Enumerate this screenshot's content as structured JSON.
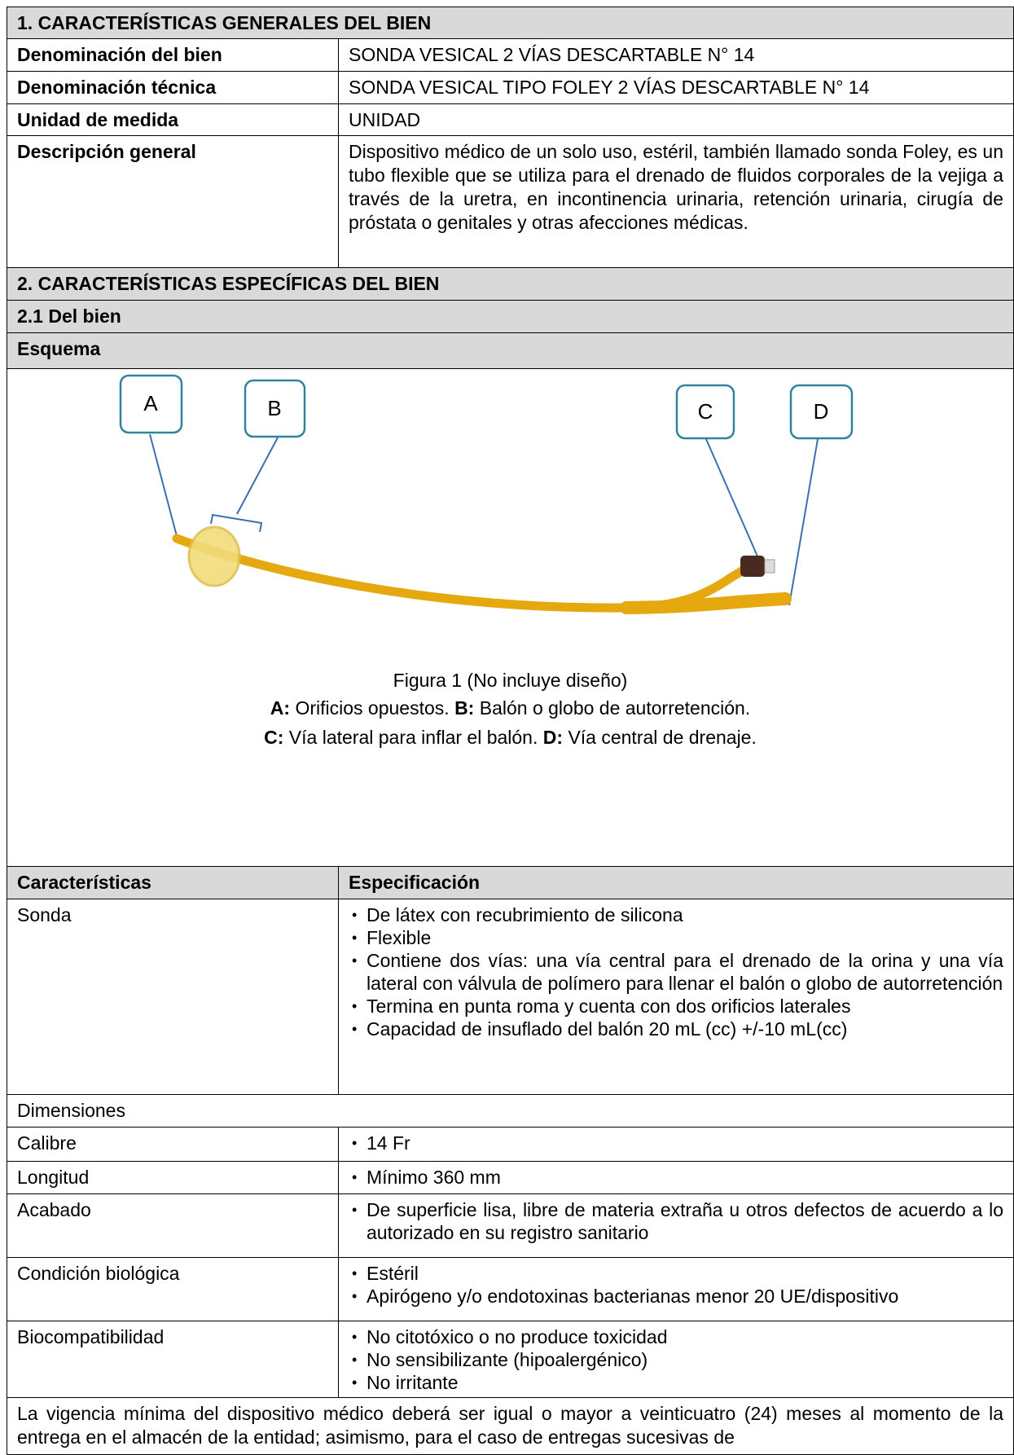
{
  "section1": {
    "title": "1. CARACTERÍSTICAS GENERALES DEL BIEN",
    "rows": [
      [
        "Denominación del bien",
        "SONDA VESICAL 2 VÍAS DESCARTABLE N° 14"
      ],
      [
        "Denominación técnica",
        "SONDA VESICAL TIPO FOLEY 2 VÍAS DESCARTABLE N° 14"
      ],
      [
        "Unidad de medida",
        "UNIDAD"
      ],
      [
        "Descripción general",
        "Dispositivo médico de un solo uso, estéril, también llamado sonda Foley, es un tubo flexible que se utiliza para el drenado de fluidos corporales de la vejiga a través de la uretra, en incontinencia urinaria, retención urinaria, cirugía de próstata o genitales y otras afecciones médicas."
      ]
    ]
  },
  "section2": {
    "title": "2. CARACTERÍSTICAS ESPECÍFICAS DEL BIEN",
    "subtitle": "2.1 Del bien",
    "scheme_title": "Esquema",
    "figure": {
      "labels": [
        "A",
        "B",
        "C",
        "D"
      ],
      "caption": "Figura 1 (No incluye diseño)",
      "legend": [
        [
          {
            "key": "A:",
            "text": "Orificios opuestos."
          },
          {
            "key": "B:",
            "text": "Balón o globo de autorretención."
          }
        ],
        [
          {
            "key": "C:",
            "text": "Vía lateral para inflar el balón."
          },
          {
            "key": "D:",
            "text": "Vía central de drenaje."
          }
        ]
      ]
    },
    "spec_table": {
      "header": [
        "Características",
        "Especificación"
      ],
      "rows": [
        {
          "name": "Sonda",
          "items": [
            "De látex con recubrimiento de silicona",
            "Flexible",
            "Contiene dos vías: una vía central para el drenado de la orina y una vía lateral con válvula de polímero para llenar el balón o globo de autorretención",
            "Termina en punta roma y cuenta con dos orificios laterales",
            "Capacidad de insuflado del balón 20 mL (cc) +/-10 mL(cc)"
          ]
        },
        {
          "name": "Dimensiones"
        },
        {
          "name": "Calibre",
          "items": [
            "14 Fr"
          ]
        },
        {
          "name": "Longitud",
          "items": [
            "Mínimo 360 mm"
          ]
        },
        {
          "name": "Acabado",
          "items": [
            "De superficie lisa, libre de materia extraña u otros defectos de acuerdo a lo autorizado en su registro sanitario"
          ]
        },
        {
          "name": "Condición biológica",
          "items": [
            "Estéril",
            "Apirógeno y/o endotoxinas bacterianas menor 20 UE/dispositivo"
          ]
        },
        {
          "name": "Biocompatibilidad",
          "items": [
            "No citotóxico o no produce toxicidad",
            "No sensibilizante (hipoalergénico)",
            "No irritante"
          ]
        }
      ]
    },
    "note": "La vigencia mínima del dispositivo médico deberá ser igual o mayor a veinticuatro (24) meses al momento de la entrega en el almacén de la entidad; asimismo, para el caso de entregas sucesivas de"
  }
}
